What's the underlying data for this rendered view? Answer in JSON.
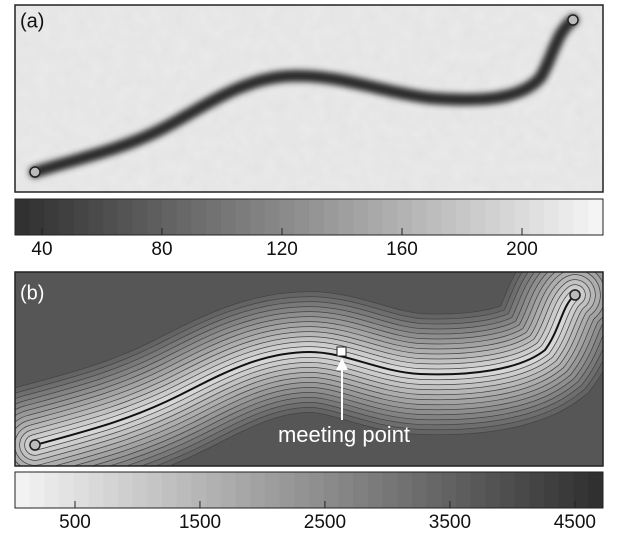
{
  "panels": [
    {
      "label": "(a)",
      "colorbar": {
        "range": [
          31,
          227
        ],
        "ticks": [
          40,
          80,
          120,
          160,
          200
        ],
        "colors": [
          "#2e2e2e",
          "#f6f6f6"
        ]
      }
    },
    {
      "label": "(b)",
      "annotation": "meeting point",
      "colorbar": {
        "range": [
          20,
          4725
        ],
        "ticks": [
          500,
          1500,
          2500,
          3500,
          4500
        ],
        "colors": [
          "#f4f4f4",
          "#2e2e2e"
        ]
      }
    }
  ]
}
